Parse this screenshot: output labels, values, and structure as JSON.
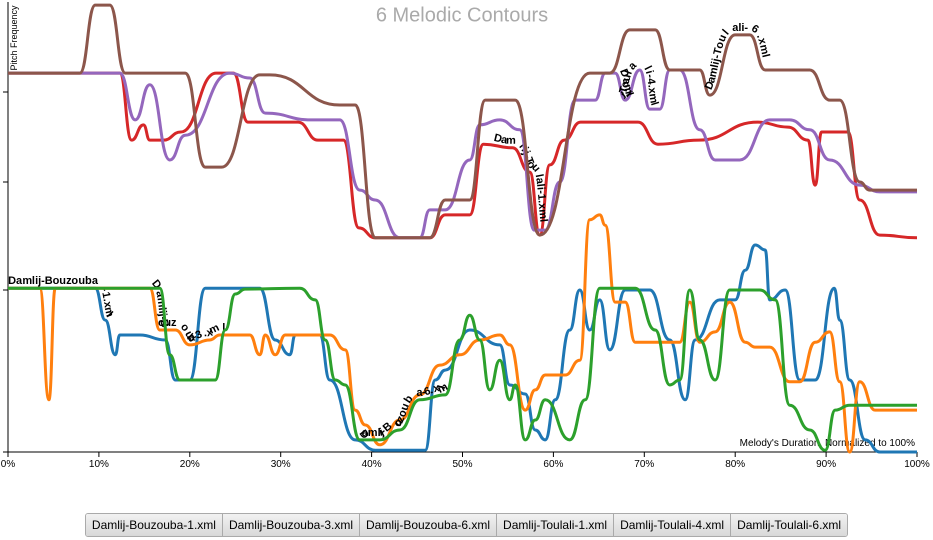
{
  "chart_data": {
    "type": "line",
    "title": "6 Melodic Contours",
    "y_label": "Pitch Frequency",
    "x_label": "Melody's Duration, Normalized to 100%",
    "xlim": [
      0,
      100
    ],
    "xticks": [
      {
        "value": 0,
        "label": "0%"
      },
      {
        "value": 10,
        "label": "10%"
      },
      {
        "value": 20,
        "label": "20%"
      },
      {
        "value": 30,
        "label": "30%"
      },
      {
        "value": 40,
        "label": "40%"
      },
      {
        "value": 50,
        "label": "50%"
      },
      {
        "value": 60,
        "label": "60%"
      },
      {
        "value": 70,
        "label": "70%"
      },
      {
        "value": 80,
        "label": "80%"
      },
      {
        "value": 90,
        "label": "90%"
      },
      {
        "value": 100,
        "label": "100%"
      }
    ],
    "ylim": [
      0,
      100
    ],
    "yticks": [
      0,
      36,
      60,
      80
    ],
    "series": [
      {
        "name": "Damlij-Bouzouba-1.xml",
        "color": "#1f77b4",
        "x": [
          0,
          9.6,
          10.7,
          11.8,
          12.3,
          14.5,
          17.3,
          18.4,
          20,
          21.7,
          27.7,
          29.4,
          31,
          31.6,
          34.3,
          35.4,
          38.2,
          40.4,
          45.9,
          47,
          48.1,
          50.8,
          54.1,
          55.2,
          56.9,
          58,
          59.1,
          60.2,
          61.8,
          62.9,
          64,
          65.1,
          66.2,
          67.9,
          70.6,
          72.8,
          74.5,
          75.6,
          78.3,
          80,
          81.1,
          82.2,
          83.3,
          83.8,
          85.5,
          87.1,
          88.8,
          90.9,
          91.5,
          92.6,
          94.3,
          95.9,
          100
        ],
        "values": [
          36.4,
          36.4,
          29.3,
          21.6,
          26,
          26,
          24.9,
          16,
          16,
          36.4,
          36.4,
          24.9,
          21.6,
          26,
          26,
          16,
          2.7,
          0.4,
          0.4,
          16,
          18.2,
          27.1,
          23.8,
          14.9,
          12.9,
          4.9,
          2.7,
          11.6,
          27.1,
          36,
          27.1,
          33.8,
          22.7,
          36,
          36,
          24.9,
          11.6,
          24.9,
          33.8,
          33.8,
          40.4,
          46,
          44.9,
          33.8,
          36,
          16,
          16,
          36.4,
          29.3,
          16,
          2.7,
          0,
          0
        ]
      },
      {
        "name": "Damlij-Bouzouba-3.xml",
        "color": "#ff7f0e",
        "x": [
          0,
          3.5,
          4.5,
          5.2,
          15.6,
          16.7,
          18.4,
          20,
          22.2,
          23.3,
          26.6,
          27.7,
          28.3,
          29.4,
          30.5,
          35.4,
          37.1,
          38.2,
          39.3,
          40.9,
          43.1,
          45.3,
          47.5,
          49.7,
          51.9,
          54.1,
          55.2,
          56.9,
          58,
          59.1,
          61.3,
          62.9,
          64,
          65.1,
          65.7,
          66.8,
          67.9,
          69,
          73.9,
          75,
          76.1,
          77.8,
          79.4,
          81.1,
          82.2,
          83.8,
          86,
          87.1,
          88.8,
          90.4,
          91.5,
          92.6,
          93.7,
          95.4,
          100
        ],
        "values": [
          36.4,
          36.4,
          11.6,
          36.4,
          36.4,
          27.1,
          27.1,
          23.8,
          24.9,
          26,
          26,
          21.6,
          26,
          21.6,
          26,
          26,
          22.7,
          9.3,
          6,
          1.6,
          7.1,
          12.7,
          19.3,
          21.6,
          24.9,
          26,
          23.8,
          9.3,
          13.8,
          17.1,
          17.1,
          20.4,
          51.6,
          52.7,
          50.4,
          33.3,
          33.3,
          24.4,
          24.4,
          33.3,
          24.4,
          26.7,
          33.3,
          24.4,
          23.3,
          23.3,
          15.6,
          15.6,
          24.4,
          26.7,
          15.6,
          0,
          15.6,
          9.3,
          9.3
        ]
      },
      {
        "name": "Damlij-Bouzouba-6.xml",
        "color": "#2ca02c",
        "x": [
          0,
          16.7,
          17.8,
          18.9,
          22.8,
          23.9,
          25,
          26.1,
          32.1,
          33.8,
          34.9,
          36,
          37.1,
          38.7,
          40.9,
          43.1,
          45.3,
          48.1,
          49.7,
          50.8,
          51.9,
          53,
          54.1,
          55.2,
          55.8,
          56.9,
          58,
          59.1,
          61.8,
          63.5,
          65.1,
          69,
          71.2,
          72.8,
          73.9,
          75,
          76.1,
          77.8,
          79.4,
          82.7,
          84.4,
          86,
          88.2,
          89.9,
          91,
          92.6,
          100
        ],
        "values": [
          36.4,
          36.4,
          21.6,
          16,
          16,
          27.1,
          35.1,
          36.2,
          36.4,
          33.8,
          24.9,
          16,
          14.9,
          2.7,
          2.7,
          4.9,
          11.6,
          12.7,
          24.9,
          30.4,
          24.9,
          13.8,
          20.4,
          11.6,
          14.9,
          2.7,
          7.1,
          11.6,
          2.7,
          11.6,
          36.4,
          36.4,
          27.1,
          14.9,
          16,
          36,
          24.9,
          16,
          36,
          36,
          33.8,
          10.4,
          4.9,
          0.4,
          9.3,
          10.4,
          10.4
        ]
      },
      {
        "name": "Damlij-Toulali-1.xml",
        "color": "#d62728",
        "x": [
          0,
          12.3,
          13.6,
          14.9,
          15.6,
          17.1,
          19,
          22.9,
          24.8,
          26.4,
          31.9,
          34.1,
          36.9,
          38.6,
          40.4,
          46.4,
          48.1,
          50.8,
          52.3,
          55.5,
          57.4,
          58.5,
          59.6,
          61.2,
          63,
          69.3,
          71.5,
          76,
          82.5,
          85.8,
          88,
          88.8,
          89.5,
          92.4,
          93.7,
          95.9,
          100
        ],
        "values": [
          84.2,
          84.2,
          69.3,
          72.7,
          69.3,
          69.3,
          71.1,
          84.2,
          84.2,
          73.3,
          73.3,
          69.3,
          69.3,
          49.8,
          47.6,
          47.6,
          52.7,
          52.7,
          68.4,
          67.6,
          62.2,
          48.2,
          63.8,
          69.3,
          73.3,
          73.3,
          68.4,
          69.3,
          73.3,
          72.2,
          69.3,
          59.3,
          71.1,
          71.1,
          56,
          48.2,
          47.6
        ]
      },
      {
        "name": "Damlij-Toulali-4.xml",
        "color": "#9467bd",
        "x": [
          0,
          12.3,
          14,
          15.6,
          17.8,
          19.5,
          24.4,
          26.6,
          28.3,
          33.4,
          36.5,
          38.7,
          40.4,
          43.1,
          45.3,
          46.4,
          48.1,
          50.8,
          51.9,
          54.1,
          56.3,
          57.9,
          59.1,
          60.7,
          62.4,
          64.6,
          65.7,
          66.8,
          67.9,
          69.5,
          70.6,
          71.7,
          72.8,
          73.9,
          76.1,
          77.8,
          80.5,
          83.8,
          86,
          88.2,
          90.4,
          93.7,
          95.9,
          100
        ],
        "values": [
          84.2,
          84.2,
          73.8,
          81.6,
          64.9,
          70.4,
          84.2,
          83.1,
          75.3,
          73.8,
          73.8,
          58.2,
          56,
          47.6,
          47.6,
          53.8,
          53.8,
          64.9,
          72.7,
          73.8,
          71.6,
          49.3,
          49.3,
          60,
          78.2,
          78.2,
          84.2,
          84.2,
          78.2,
          84.9,
          76.2,
          76.2,
          84.9,
          84.9,
          71.6,
          64.9,
          64.9,
          73.8,
          73.8,
          71.6,
          64.9,
          59.3,
          57.8,
          57.8
        ]
      },
      {
        "name": "Damlij-Toulali-6.xml",
        "color": "#8c564b",
        "x": [
          0,
          7.9,
          9.6,
          11.2,
          12.9,
          19.5,
          21.7,
          23.5,
          27.7,
          28.8,
          36.5,
          38.2,
          40.4,
          46.4,
          48.1,
          50.8,
          52.5,
          55.8,
          58.5,
          64,
          66.2,
          68.4,
          71.2,
          72.8,
          76.1,
          77.2,
          80,
          81.6,
          83.3,
          88.2,
          90.4,
          91.5,
          93.7,
          94.8,
          100
        ],
        "values": [
          84.2,
          84.2,
          99.3,
          99.3,
          84.2,
          84.2,
          63.3,
          63.3,
          83.8,
          83.8,
          77.1,
          77.1,
          47.6,
          47.6,
          56,
          56,
          78.2,
          78.2,
          48.2,
          84.2,
          84.2,
          93.8,
          93.8,
          84.9,
          84.9,
          79.3,
          92.7,
          92.7,
          84.9,
          84.9,
          78.2,
          78.2,
          60,
          58.2,
          58.2
        ]
      }
    ]
  }
}
